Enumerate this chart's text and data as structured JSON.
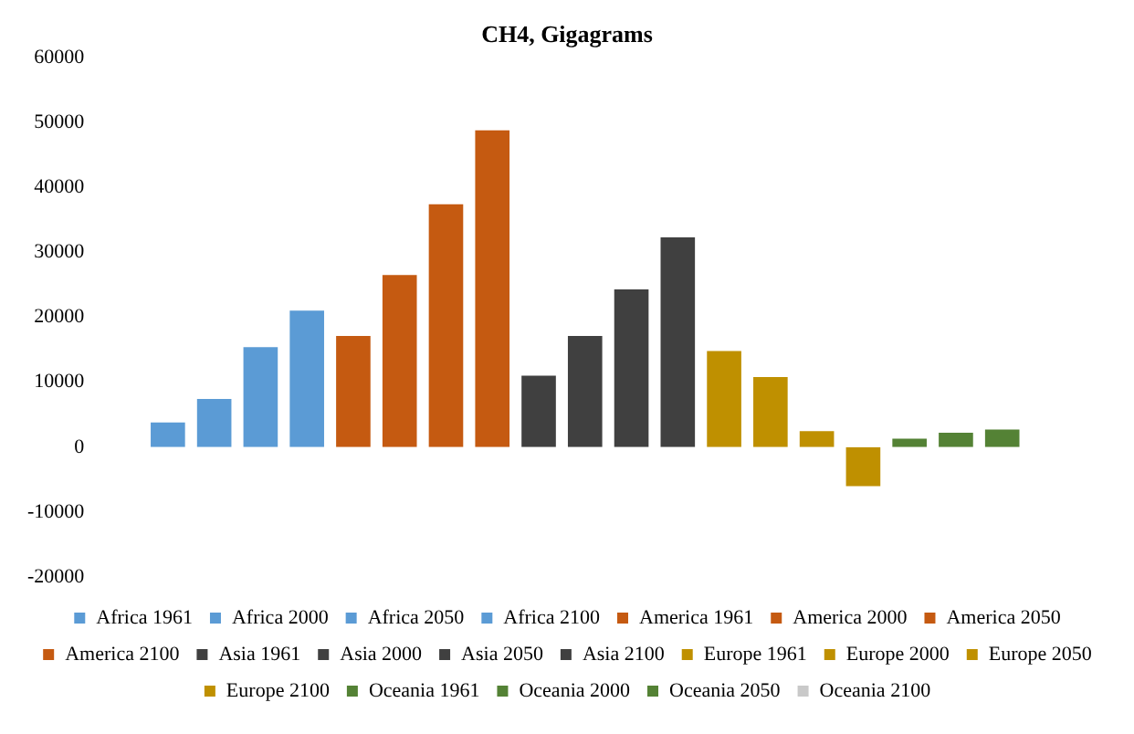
{
  "chart_data": {
    "type": "bar",
    "title": "CH4, Gigagrams",
    "categories": [
      null
    ],
    "ylim": [
      -20000,
      60000
    ],
    "yticks": [
      -20000,
      -10000,
      0,
      10000,
      20000,
      30000,
      40000,
      50000,
      60000
    ],
    "grid": false,
    "legend": "bottom",
    "series": [
      {
        "name": "Africa 1961",
        "color": "#5b9bd5",
        "values": [
          4100
        ]
      },
      {
        "name": "Africa 2000",
        "color": "#5b9bd5",
        "values": [
          7700
        ]
      },
      {
        "name": "Africa 2050",
        "color": "#5b9bd5",
        "values": [
          15700
        ]
      },
      {
        "name": "Africa 2100",
        "color": "#5b9bd5",
        "values": [
          21300
        ]
      },
      {
        "name": "America 1961",
        "color": "#c55a11",
        "values": [
          17400
        ]
      },
      {
        "name": "America 2000",
        "color": "#c55a11",
        "values": [
          26800
        ]
      },
      {
        "name": "America 2050",
        "color": "#c55a11",
        "values": [
          37700
        ]
      },
      {
        "name": "America 2100",
        "color": "#c55a11",
        "values": [
          49100
        ]
      },
      {
        "name": "Asia 1961",
        "color": "#404040",
        "values": [
          11300
        ]
      },
      {
        "name": "Asia 2000",
        "color": "#404040",
        "values": [
          17400
        ]
      },
      {
        "name": "Asia 2050",
        "color": "#404040",
        "values": [
          24600
        ]
      },
      {
        "name": "Asia 2100",
        "color": "#404040",
        "values": [
          32600
        ]
      },
      {
        "name": "Europe 1961",
        "color": "#bf9000",
        "values": [
          15100
        ]
      },
      {
        "name": "Europe 2000",
        "color": "#bf9000",
        "values": [
          11100
        ]
      },
      {
        "name": "Europe 2050",
        "color": "#bf9000",
        "values": [
          2750
        ]
      },
      {
        "name": "Europe 2100",
        "color": "#bf9000",
        "values": [
          -6300
        ]
      },
      {
        "name": "Oceania 1961",
        "color": "#548235",
        "values": [
          1600
        ]
      },
      {
        "name": "Oceania 2000",
        "color": "#548235",
        "values": [
          2500
        ]
      },
      {
        "name": "Oceania 2050",
        "color": "#548235",
        "values": [
          3000
        ]
      },
      {
        "name": "Oceania 2100",
        "color": "#c9c9c9",
        "values": [
          0
        ]
      }
    ]
  }
}
